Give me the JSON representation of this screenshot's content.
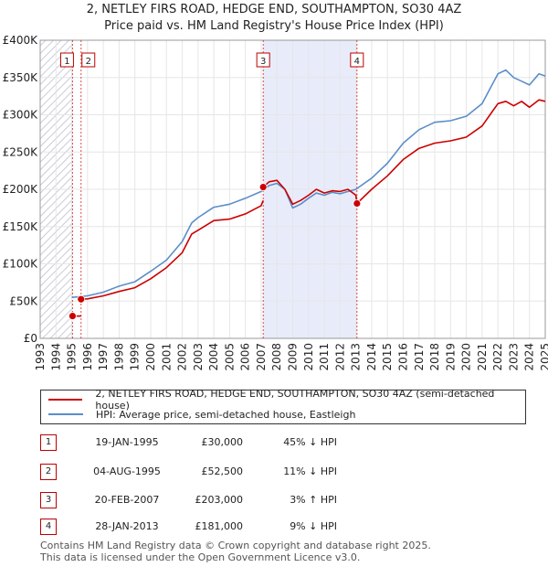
{
  "title_line1": "2, NETLEY FIRS ROAD, HEDGE END, SOUTHAMPTON, SO30 4AZ",
  "title_line2": "Price paid vs. HM Land Registry's House Price Index (HPI)",
  "chart_data": {
    "type": "line",
    "xlim": [
      1993,
      2025
    ],
    "ylim": [
      0,
      400000
    ],
    "x_ticks": [
      1993,
      1994,
      1995,
      1996,
      1997,
      1998,
      1999,
      2000,
      2001,
      2002,
      2003,
      2004,
      2005,
      2006,
      2007,
      2008,
      2009,
      2010,
      2011,
      2012,
      2013,
      2014,
      2015,
      2016,
      2017,
      2018,
      2019,
      2020,
      2021,
      2022,
      2023,
      2024,
      2025
    ],
    "y_ticks": [
      {
        "value": 0,
        "label": "£0"
      },
      {
        "value": 50000,
        "label": "£50K"
      },
      {
        "value": 100000,
        "label": "£100K"
      },
      {
        "value": 150000,
        "label": "£150K"
      },
      {
        "value": 200000,
        "label": "£200K"
      },
      {
        "value": 250000,
        "label": "£250K"
      },
      {
        "value": 300000,
        "label": "£300K"
      },
      {
        "value": 350000,
        "label": "£350K"
      },
      {
        "value": 400000,
        "label": "£400K"
      }
    ],
    "grid": true,
    "colors": {
      "property": "#cc0000",
      "hpi": "#5b8ec9",
      "shade": "#e8ecfa",
      "vline": "#cc0000",
      "hatch": "#c8ccd8"
    },
    "hatch_before": 1995.05,
    "shaded_range": [
      2007.13,
      2013.07
    ],
    "markers": [
      {
        "label": "1",
        "x": 1995.05,
        "y": 30000
      },
      {
        "label": "2",
        "x": 1995.59,
        "y": 52500
      },
      {
        "label": "3",
        "x": 2007.13,
        "y": 203000
      },
      {
        "label": "4",
        "x": 2013.07,
        "y": 181000
      }
    ],
    "series": [
      {
        "name": "2, NETLEY FIRS ROAD, HEDGE END, SOUTHAMPTON, SO30 4AZ (semi-detached house)",
        "key": "property",
        "segments": [
          [
            [
              1995.05,
              30000
            ],
            [
              1995.59,
              30000
            ]
          ],
          [
            [
              1995.59,
              52500
            ],
            [
              1996.0,
              53000
            ],
            [
              1997.0,
              57000
            ],
            [
              1998.0,
              63000
            ],
            [
              1999.0,
              68000
            ],
            [
              2000.0,
              80000
            ],
            [
              2001.0,
              95000
            ],
            [
              2002.0,
              115000
            ],
            [
              2002.6,
              140000
            ],
            [
              2003.0,
              145000
            ],
            [
              2004.0,
              158000
            ],
            [
              2005.0,
              160000
            ],
            [
              2006.0,
              167000
            ],
            [
              2007.0,
              178000
            ],
            [
              2007.13,
              185000
            ]
          ],
          [
            [
              2007.13,
              203000
            ],
            [
              2007.5,
              210000
            ],
            [
              2008.0,
              212000
            ],
            [
              2008.5,
              200000
            ],
            [
              2009.0,
              180000
            ],
            [
              2009.5,
              185000
            ],
            [
              2010.0,
              192000
            ],
            [
              2010.5,
              200000
            ],
            [
              2011.0,
              195000
            ],
            [
              2011.5,
              198000
            ],
            [
              2012.0,
              197000
            ],
            [
              2012.5,
              200000
            ],
            [
              2013.0,
              192000
            ],
            [
              2013.07,
              181000
            ]
          ],
          [
            [
              2013.07,
              181000
            ],
            [
              2014.0,
              200000
            ],
            [
              2015.0,
              218000
            ],
            [
              2016.0,
              240000
            ],
            [
              2017.0,
              255000
            ],
            [
              2018.0,
              262000
            ],
            [
              2019.0,
              265000
            ],
            [
              2020.0,
              270000
            ],
            [
              2021.0,
              285000
            ],
            [
              2021.5,
              300000
            ],
            [
              2022.0,
              315000
            ],
            [
              2022.5,
              318000
            ],
            [
              2023.0,
              312000
            ],
            [
              2023.5,
              318000
            ],
            [
              2024.0,
              310000
            ],
            [
              2024.6,
              320000
            ],
            [
              2025.0,
              318000
            ]
          ]
        ]
      },
      {
        "name": "HPI: Average price, semi-detached house, Eastleigh",
        "key": "hpi",
        "segments": [
          [
            [
              1995.0,
              55000
            ],
            [
              1996.0,
              57000
            ],
            [
              1997.0,
              62000
            ],
            [
              1998.0,
              70000
            ],
            [
              1999.0,
              76000
            ],
            [
              2000.0,
              90000
            ],
            [
              2001.0,
              105000
            ],
            [
              2002.0,
              130000
            ],
            [
              2002.6,
              155000
            ],
            [
              2003.0,
              162000
            ],
            [
              2004.0,
              176000
            ],
            [
              2005.0,
              180000
            ],
            [
              2006.0,
              188000
            ],
            [
              2007.0,
              197000
            ],
            [
              2007.5,
              205000
            ],
            [
              2008.0,
              208000
            ],
            [
              2008.5,
              200000
            ],
            [
              2009.0,
              175000
            ],
            [
              2009.5,
              180000
            ],
            [
              2010.0,
              188000
            ],
            [
              2010.5,
              195000
            ],
            [
              2011.0,
              192000
            ],
            [
              2011.5,
              196000
            ],
            [
              2012.0,
              194000
            ],
            [
              2012.5,
              197000
            ],
            [
              2013.0,
              200000
            ],
            [
              2014.0,
              215000
            ],
            [
              2015.0,
              235000
            ],
            [
              2016.0,
              262000
            ],
            [
              2017.0,
              280000
            ],
            [
              2018.0,
              290000
            ],
            [
              2019.0,
              292000
            ],
            [
              2020.0,
              298000
            ],
            [
              2021.0,
              315000
            ],
            [
              2021.5,
              335000
            ],
            [
              2022.0,
              355000
            ],
            [
              2022.5,
              360000
            ],
            [
              2023.0,
              350000
            ],
            [
              2023.5,
              345000
            ],
            [
              2024.0,
              340000
            ],
            [
              2024.6,
              355000
            ],
            [
              2025.0,
              352000
            ]
          ]
        ]
      }
    ]
  },
  "legend": {
    "property_label": "2, NETLEY FIRS ROAD, HEDGE END, SOUTHAMPTON, SO30 4AZ (semi-detached house)",
    "hpi_label": "HPI: Average price, semi-detached house, Eastleigh"
  },
  "transactions": [
    {
      "num": "1",
      "date": "19-JAN-1995",
      "price": "£30,000",
      "hpi": "45% ↓ HPI"
    },
    {
      "num": "2",
      "date": "04-AUG-1995",
      "price": "£52,500",
      "hpi": "11% ↓ HPI"
    },
    {
      "num": "3",
      "date": "20-FEB-2007",
      "price": "£203,000",
      "hpi": "3% ↑ HPI"
    },
    {
      "num": "4",
      "date": "28-JAN-2013",
      "price": "£181,000",
      "hpi": "9% ↓ HPI"
    }
  ],
  "footer_line1": "Contains HM Land Registry data © Crown copyright and database right 2025.",
  "footer_line2": "This data is licensed under the Open Government Licence v3.0."
}
